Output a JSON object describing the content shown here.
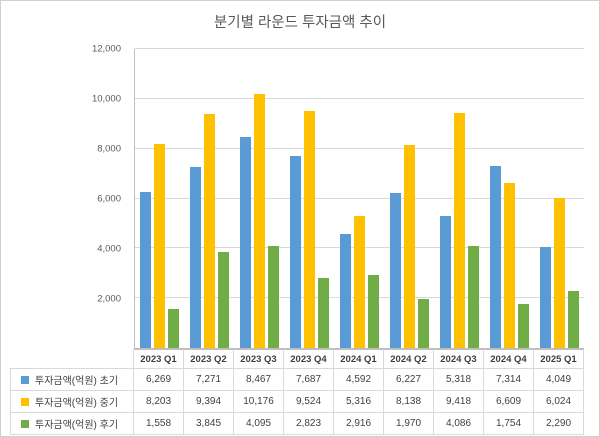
{
  "title": "분기별 라운드 투자금액 추이",
  "chart_data": {
    "type": "bar",
    "title": "분기별 라운드 투자금액 추이",
    "categories": [
      "2023 Q1",
      "2023 Q2",
      "2023 Q3",
      "2023 Q4",
      "2024 Q1",
      "2024 Q2",
      "2024 Q3",
      "2024 Q4",
      "2025 Q1"
    ],
    "series": [
      {
        "name": "투자금액(억원) 초기",
        "color": "#5B9BD5",
        "values": [
          6269,
          7271,
          8467,
          7687,
          4592,
          6227,
          5318,
          7314,
          4049
        ]
      },
      {
        "name": "투자금액(억원) 중기",
        "color": "#FFC000",
        "values": [
          8203,
          9394,
          10176,
          9524,
          5316,
          8138,
          9418,
          6609,
          6024
        ]
      },
      {
        "name": "투자금액(억원) 후기",
        "color": "#70AD47",
        "values": [
          1558,
          3845,
          4095,
          2823,
          2916,
          1970,
          4086,
          1754,
          2290
        ]
      }
    ],
    "ylim": [
      0,
      12000
    ],
    "ytick_interval": 2000,
    "ytick_labels": [
      "2,000",
      "4,000",
      "6,000",
      "8,000",
      "10,000",
      "12,000"
    ],
    "grid": true,
    "legend_position": "data-table-left",
    "data_table": true,
    "gridline_color": "#d9d9d9",
    "axis_text_color": "#595959",
    "table_text_color": "#404040"
  }
}
